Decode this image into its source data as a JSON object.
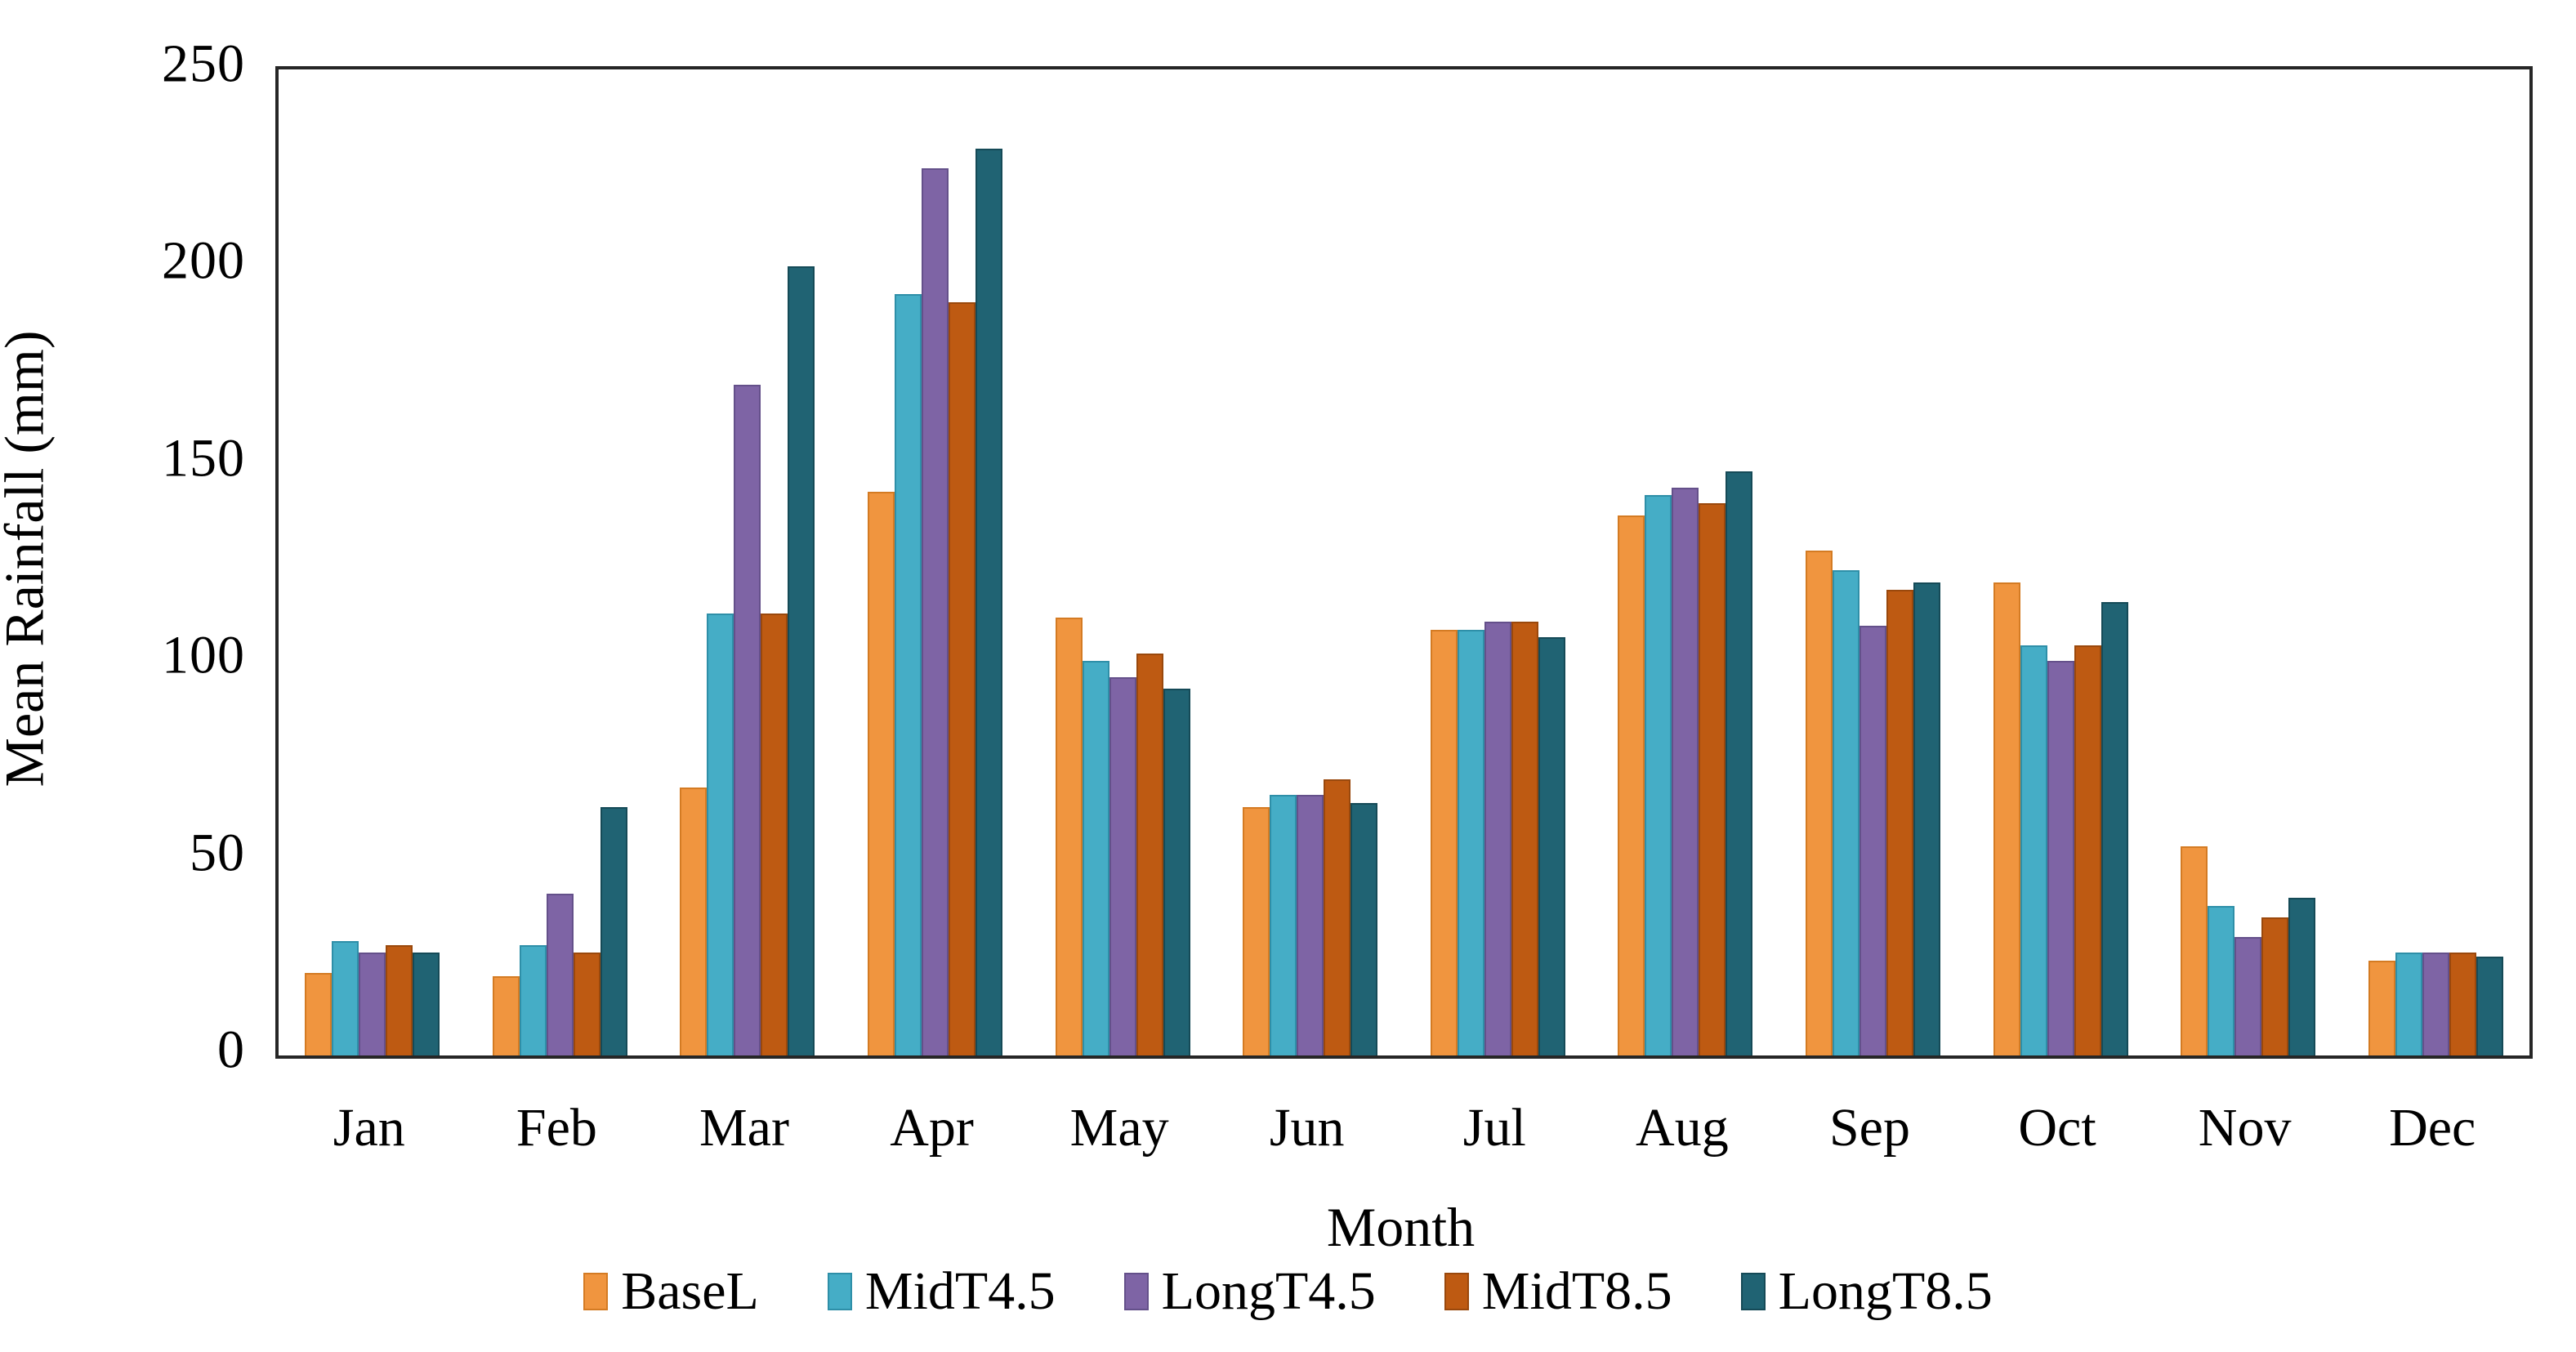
{
  "chart_data": {
    "type": "bar",
    "title": "",
    "xlabel": "Month",
    "ylabel": "Mean Rainfall (mm)",
    "ylim": [
      0,
      250
    ],
    "y_ticks": [
      0,
      50,
      100,
      150,
      200,
      250
    ],
    "grid": false,
    "legend_position": "bottom",
    "plot_border_color": "#262626",
    "categories": [
      "Jan",
      "Feb",
      "Mar",
      "Apr",
      "May",
      "Jun",
      "Jul",
      "Aug",
      "Sep",
      "Oct",
      "Nov",
      "Dec"
    ],
    "series": [
      {
        "name": "BaseL",
        "color": "#F0953F",
        "border_color": "#D47B23",
        "values": [
          21,
          20,
          68,
          143,
          111,
          63,
          108,
          137,
          128,
          120,
          53,
          24
        ]
      },
      {
        "name": "MidT4.5",
        "color": "#45ADC6",
        "border_color": "#2E8FA8",
        "values": [
          29,
          28,
          112,
          193,
          100,
          66,
          108,
          142,
          123,
          104,
          38,
          26
        ]
      },
      {
        "name": "LongT4.5",
        "color": "#7E64A5",
        "border_color": "#64508A",
        "values": [
          26,
          41,
          170,
          225,
          96,
          66,
          110,
          144,
          109,
          100,
          30,
          26
        ]
      },
      {
        "name": "MidT8.5",
        "color": "#BE5A12",
        "border_color": "#9A480C",
        "values": [
          28,
          26,
          112,
          191,
          102,
          70,
          110,
          140,
          118,
          104,
          35,
          26
        ]
      },
      {
        "name": "LongT8.5",
        "color": "#206373",
        "border_color": "#154A57",
        "values": [
          26,
          63,
          200,
          230,
          93,
          64,
          106,
          148,
          120,
          115,
          40,
          25
        ]
      }
    ]
  }
}
